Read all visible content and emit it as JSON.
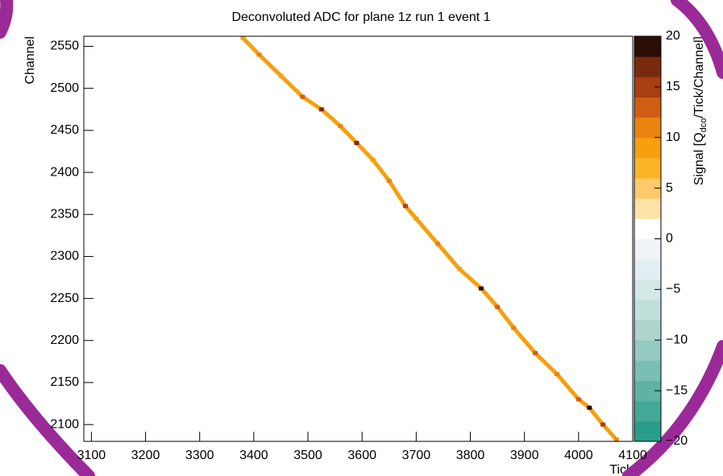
{
  "chart_data": {
    "type": "heatmap",
    "title": "Deconvoluted ADC for plane 1z run 1 event 1",
    "x_label": "Tick",
    "y_label": "Channel",
    "z_label": [
      "Signal [Q",
      "dco",
      "/Tick/Channel]"
    ],
    "x": [
      3380,
      3410,
      3450,
      3490,
      3525,
      3560,
      3590,
      3620,
      3650,
      3680,
      3700,
      3740,
      3780,
      3820,
      3850,
      3880,
      3920,
      3960,
      4000,
      4020,
      4045,
      4070
    ],
    "values": [
      2560,
      2540,
      2515,
      2490,
      2475,
      2455,
      2435,
      2415,
      2390,
      2360,
      2345,
      2315,
      2285,
      2262,
      2240,
      2215,
      2185,
      2160,
      2130,
      2120,
      2100,
      2082
    ],
    "z": [
      8,
      10,
      9,
      12,
      16,
      10,
      17,
      9,
      11,
      14,
      8,
      10,
      9,
      19,
      12,
      10,
      13,
      11,
      12,
      18,
      15,
      10
    ],
    "xlim": [
      3086,
      4100
    ],
    "xticks": [
      3100,
      3200,
      3300,
      3400,
      3500,
      3600,
      3700,
      3800,
      3900,
      4000,
      4100
    ],
    "ylim": [
      2080,
      2562
    ],
    "yticks": [
      2100,
      2150,
      2200,
      2250,
      2300,
      2350,
      2400,
      2450,
      2500,
      2550
    ],
    "zlim": [
      -20,
      20
    ],
    "zticks": [
      {
        "value": -20,
        "label": "−20"
      },
      {
        "value": -15,
        "label": "−15"
      },
      {
        "value": -10,
        "label": "−10"
      },
      {
        "value": -5,
        "label": "−5"
      },
      0,
      5,
      10,
      15,
      20
    ],
    "colors": [
      "#2a9d8a",
      "#44a898",
      "#5eb3a5",
      "#7abfb3",
      "#95cbc1",
      "#aed6ce",
      "#c2e0db",
      "#d4e8e8",
      "#e2eff3",
      "#eef5f8",
      "#ffffff",
      "#fde3a8",
      "#fdc96a",
      "#fbb428",
      "#f6a00f",
      "#e8840f",
      "#cf5e14",
      "#a83e12",
      "#7a2a0e",
      "#2b0e06"
    ]
  }
}
